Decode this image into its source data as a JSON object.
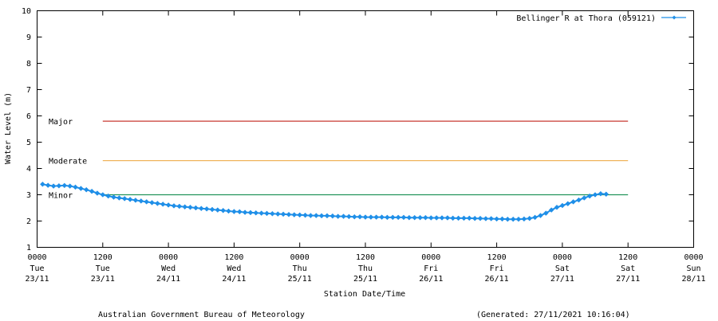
{
  "chart_data": {
    "type": "line",
    "xlabel": "Station Date/Time",
    "ylabel": "Water Level (m)",
    "ylim": [
      1,
      10
    ],
    "yticks": [
      1,
      2,
      3,
      4,
      5,
      6,
      7,
      8,
      9,
      10
    ],
    "xlim": [
      "23/11 0000",
      "28/11 0000"
    ],
    "xticks": [
      {
        "time": "0000",
        "day": "Tue",
        "date": "23/11"
      },
      {
        "time": "1200",
        "day": "Tue",
        "date": "23/11"
      },
      {
        "time": "0000",
        "day": "Wed",
        "date": "24/11"
      },
      {
        "time": "1200",
        "day": "Wed",
        "date": "24/11"
      },
      {
        "time": "0000",
        "day": "Thu",
        "date": "25/11"
      },
      {
        "time": "1200",
        "day": "Thu",
        "date": "25/11"
      },
      {
        "time": "0000",
        "day": "Fri",
        "date": "26/11"
      },
      {
        "time": "1200",
        "day": "Fri",
        "date": "26/11"
      },
      {
        "time": "0000",
        "day": "Sat",
        "date": "27/11"
      },
      {
        "time": "1200",
        "day": "Sat",
        "date": "27/11"
      },
      {
        "time": "0000",
        "day": "Sun",
        "date": "28/11"
      }
    ],
    "grid": false,
    "legend_position": "top-right",
    "thresholds": [
      {
        "label": "Major",
        "value": 5.8,
        "color": "#c83a32",
        "from": "23/11 1200",
        "to": "27/11 1200"
      },
      {
        "label": "Moderate",
        "value": 4.3,
        "color": "#f0b45c",
        "from": "23/11 1200",
        "to": "27/11 1200"
      },
      {
        "label": "Minor",
        "value": 3.0,
        "color": "#23945a",
        "from": "23/11 1200",
        "to": "27/11 1200"
      }
    ],
    "series": [
      {
        "name": "Bellinger R at Thora (059121)",
        "color": "#1f8fe8",
        "x": [
          "23/11 0100",
          "23/11 0200",
          "23/11 0300",
          "23/11 0400",
          "23/11 0500",
          "23/11 0600",
          "23/11 0700",
          "23/11 0800",
          "23/11 0900",
          "23/11 1000",
          "23/11 1100",
          "23/11 1200",
          "23/11 1300",
          "23/11 1400",
          "23/11 1500",
          "23/11 1600",
          "23/11 1700",
          "23/11 1800",
          "23/11 1900",
          "23/11 2000",
          "23/11 2100",
          "23/11 2200",
          "23/11 2300",
          "24/11 0000",
          "24/11 0100",
          "24/11 0200",
          "24/11 0300",
          "24/11 0400",
          "24/11 0500",
          "24/11 0600",
          "24/11 0700",
          "24/11 0800",
          "24/11 0900",
          "24/11 1000",
          "24/11 1100",
          "24/11 1200",
          "24/11 1300",
          "24/11 1400",
          "24/11 1500",
          "24/11 1600",
          "24/11 1700",
          "24/11 1800",
          "24/11 1900",
          "24/11 2000",
          "24/11 2100",
          "24/11 2200",
          "24/11 2300",
          "25/11 0000",
          "25/11 0100",
          "25/11 0200",
          "25/11 0300",
          "25/11 0400",
          "25/11 0500",
          "25/11 0600",
          "25/11 0700",
          "25/11 0800",
          "25/11 0900",
          "25/11 1000",
          "25/11 1100",
          "25/11 1200",
          "25/11 1300",
          "25/11 1400",
          "25/11 1500",
          "25/11 1600",
          "25/11 1700",
          "25/11 1800",
          "25/11 1900",
          "25/11 2000",
          "25/11 2100",
          "25/11 2200",
          "25/11 2300",
          "26/11 0000",
          "26/11 0100",
          "26/11 0200",
          "26/11 0300",
          "26/11 0400",
          "26/11 0500",
          "26/11 0600",
          "26/11 0700",
          "26/11 0800",
          "26/11 0900",
          "26/11 1000",
          "26/11 1100",
          "26/11 1200",
          "26/11 1300",
          "26/11 1400",
          "26/11 1500",
          "26/11 1600",
          "26/11 1700",
          "26/11 1800",
          "26/11 1900",
          "26/11 2000",
          "26/11 2100",
          "26/11 2200",
          "26/11 2300",
          "27/11 0000",
          "27/11 0100",
          "27/11 0200",
          "27/11 0300",
          "27/11 0400",
          "27/11 0500",
          "27/11 0600",
          "27/11 0700",
          "27/11 0800"
        ],
        "y": [
          3.4,
          3.36,
          3.33,
          3.34,
          3.35,
          3.33,
          3.29,
          3.24,
          3.19,
          3.13,
          3.06,
          3.0,
          2.95,
          2.91,
          2.88,
          2.85,
          2.82,
          2.79,
          2.76,
          2.73,
          2.7,
          2.67,
          2.64,
          2.61,
          2.58,
          2.56,
          2.54,
          2.52,
          2.5,
          2.48,
          2.46,
          2.44,
          2.42,
          2.4,
          2.38,
          2.36,
          2.35,
          2.33,
          2.32,
          2.31,
          2.3,
          2.29,
          2.28,
          2.27,
          2.26,
          2.25,
          2.24,
          2.23,
          2.22,
          2.21,
          2.21,
          2.2,
          2.2,
          2.19,
          2.18,
          2.18,
          2.17,
          2.16,
          2.16,
          2.15,
          2.15,
          2.15,
          2.15,
          2.14,
          2.14,
          2.14,
          2.14,
          2.13,
          2.13,
          2.13,
          2.13,
          2.12,
          2.12,
          2.12,
          2.12,
          2.11,
          2.11,
          2.11,
          2.11,
          2.1,
          2.1,
          2.09,
          2.09,
          2.08,
          2.08,
          2.07,
          2.07,
          2.07,
          2.08,
          2.1,
          2.14,
          2.21,
          2.3,
          2.42,
          2.52,
          2.59,
          2.66,
          2.73,
          2.8,
          2.88,
          2.95,
          3.0,
          3.04,
          3.02
        ]
      }
    ]
  },
  "footer": {
    "attribution": "Australian Government Bureau of Meteorology",
    "generated": "(Generated: 27/11/2021 10:16:04)"
  }
}
